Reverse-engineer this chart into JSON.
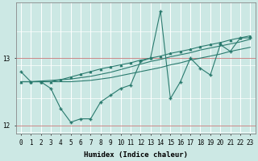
{
  "xlabel": "Humidex (Indice chaleur)",
  "x": [
    0,
    1,
    2,
    3,
    4,
    5,
    6,
    7,
    8,
    9,
    10,
    11,
    12,
    13,
    14,
    15,
    16,
    17,
    18,
    19,
    20,
    21,
    22,
    23
  ],
  "y_main": [
    12.8,
    12.65,
    12.65,
    12.55,
    12.25,
    12.05,
    12.1,
    12.1,
    12.35,
    12.45,
    12.55,
    12.6,
    12.95,
    13.0,
    13.7,
    12.4,
    12.65,
    13.0,
    12.85,
    12.75,
    13.2,
    13.1,
    13.3,
    13.3
  ],
  "y_line1": [
    12.65,
    12.65,
    12.65,
    12.65,
    12.68,
    12.72,
    12.76,
    12.8,
    12.84,
    12.87,
    12.9,
    12.93,
    12.97,
    13.0,
    13.03,
    13.07,
    13.1,
    13.13,
    13.17,
    13.2,
    13.23,
    13.27,
    13.3,
    13.33
  ],
  "y_line2": [
    12.65,
    12.65,
    12.66,
    12.67,
    12.68,
    12.69,
    12.71,
    12.73,
    12.76,
    12.79,
    12.83,
    12.87,
    12.91,
    12.95,
    12.98,
    13.02,
    13.05,
    13.08,
    13.12,
    13.15,
    13.18,
    13.21,
    13.24,
    13.28
  ],
  "y_line3": [
    12.65,
    12.65,
    12.65,
    12.65,
    12.65,
    12.65,
    12.66,
    12.67,
    12.69,
    12.71,
    12.74,
    12.77,
    12.8,
    12.83,
    12.86,
    12.9,
    12.93,
    12.97,
    13.0,
    13.03,
    13.06,
    13.1,
    13.13,
    13.16
  ],
  "ylim": [
    11.88,
    13.82
  ],
  "yticks": [
    12.0,
    13.0
  ],
  "bg_color": "#cce8e4",
  "line_color": "#2a7a6e",
  "grid_color_v": "#ffffff",
  "grid_color_h": "#e8d4d4",
  "hline_color": "#cc8888",
  "xlabel_color": "#000000"
}
